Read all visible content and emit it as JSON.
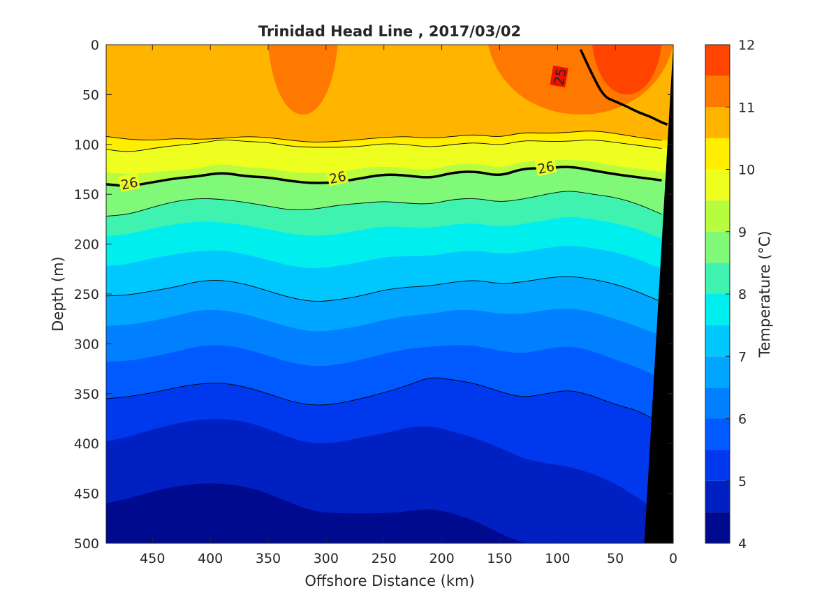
{
  "chart_data": {
    "type": "heatmap",
    "subtype": "filled-contour section",
    "title": "Trinidad Head Line , 2017/03/02",
    "xlabel": "Offshore Distance (km)",
    "ylabel": "Depth (m)",
    "xlim": [
      490,
      0
    ],
    "ylim": [
      0,
      500
    ],
    "x_reversed": true,
    "y_reversed": true,
    "xticks": [
      450,
      400,
      350,
      300,
      250,
      200,
      150,
      100,
      50,
      0
    ],
    "yticks": [
      0,
      50,
      100,
      150,
      200,
      250,
      300,
      350,
      400,
      450,
      500
    ],
    "colorbar": {
      "label": "Temperature (°C)",
      "range": [
        4,
        12
      ],
      "ticks": [
        4,
        5,
        6,
        7,
        8,
        9,
        10,
        11,
        12
      ],
      "levels": [
        4,
        4.5,
        5,
        5.5,
        6,
        6.5,
        7,
        7.5,
        8,
        8.5,
        9,
        9.5,
        10,
        10.5,
        11,
        11.5,
        12
      ],
      "colormap": "jet",
      "colors": [
        "#000a8f",
        "#0020c2",
        "#0038ee",
        "#005aff",
        "#0080ff",
        "#00a6ff",
        "#00c8ff",
        "#00eeee",
        "#40f2b0",
        "#80f878",
        "#b8fc40",
        "#eeff20",
        "#ffee00",
        "#ffb400",
        "#ff7800",
        "#ff4400",
        "#ee0c00",
        "#b40000"
      ]
    },
    "x": [
      490,
      470,
      450,
      430,
      410,
      390,
      370,
      350,
      330,
      310,
      290,
      270,
      250,
      230,
      210,
      190,
      170,
      150,
      130,
      110,
      90,
      70,
      50,
      30,
      10
    ],
    "isotherm_depths": [
      {
        "temp": 10.5,
        "depths": [
          92,
          95,
          96,
          94,
          95,
          94,
          92,
          93,
          96,
          98,
          97,
          95,
          93,
          92,
          94,
          92,
          90,
          93,
          88,
          89,
          88,
          86,
          89,
          93,
          96
        ]
      },
      {
        "temp": 10.0,
        "depths": [
          105,
          108,
          104,
          101,
          99,
          95,
          97,
          98,
          102,
          103,
          103,
          102,
          99,
          100,
          103,
          100,
          98,
          101,
          96,
          97,
          97,
          95,
          98,
          101,
          104
        ]
      },
      {
        "temp": 9.5,
        "depths": [
          128,
          130,
          128,
          126,
          124,
          119,
          123,
          124,
          128,
          129,
          128,
          124,
          122,
          124,
          126,
          120,
          119,
          124,
          117,
          116,
          115,
          117,
          122,
          124,
          128
        ]
      },
      {
        "temp": 9.0,
        "depths": [
          140,
          142,
          138,
          134,
          132,
          128,
          132,
          133,
          137,
          139,
          138,
          134,
          130,
          131,
          134,
          128,
          127,
          132,
          124,
          124,
          122,
          126,
          130,
          133,
          136
        ]
      },
      {
        "temp": 8.5,
        "depths": [
          172,
          170,
          163,
          157,
          154,
          155,
          158,
          162,
          166,
          165,
          161,
          159,
          157,
          159,
          160,
          155,
          154,
          158,
          155,
          150,
          146,
          150,
          153,
          160,
          170
        ]
      },
      {
        "temp": 8.0,
        "depths": [
          192,
          190,
          184,
          180,
          177,
          178,
          181,
          185,
          190,
          192,
          190,
          186,
          182,
          183,
          184,
          180,
          179,
          183,
          180,
          176,
          172,
          175,
          179,
          185,
          195
        ]
      },
      {
        "temp": 7.5,
        "depths": [
          222,
          220,
          214,
          210,
          207,
          206,
          210,
          216,
          222,
          225,
          222,
          218,
          213,
          212,
          212,
          208,
          206,
          210,
          208,
          204,
          201,
          204,
          208,
          215,
          225
        ]
      },
      {
        "temp": 7.0,
        "depths": [
          252,
          251,
          247,
          243,
          237,
          236,
          240,
          247,
          254,
          258,
          256,
          252,
          246,
          243,
          242,
          238,
          236,
          240,
          238,
          234,
          232,
          235,
          240,
          248,
          258
        ]
      },
      {
        "temp": 6.5,
        "depths": [
          282,
          281,
          277,
          272,
          266,
          266,
          270,
          277,
          284,
          288,
          286,
          282,
          276,
          272,
          270,
          266,
          266,
          270,
          270,
          266,
          264,
          268,
          275,
          283,
          292
        ]
      },
      {
        "temp": 6.0,
        "depths": [
          318,
          317,
          313,
          308,
          302,
          301,
          305,
          312,
          319,
          323,
          321,
          316,
          310,
          305,
          303,
          301,
          302,
          307,
          310,
          305,
          302,
          307,
          316,
          324,
          335
        ]
      },
      {
        "temp": 5.5,
        "depths": [
          355,
          353,
          349,
          344,
          340,
          339,
          343,
          350,
          358,
          362,
          360,
          355,
          349,
          342,
          333,
          336,
          340,
          348,
          354,
          350,
          346,
          352,
          361,
          367,
          380
        ]
      },
      {
        "temp": 5.0,
        "depths": [
          398,
          393,
          386,
          380,
          376,
          375,
          378,
          385,
          395,
          400,
          399,
          394,
          390,
          384,
          382,
          388,
          395,
          404,
          415,
          420,
          423,
          430,
          440,
          455,
          470
        ]
      },
      {
        "temp": 4.5,
        "depths": [
          460,
          455,
          448,
          443,
          440,
          440,
          443,
          450,
          460,
          468,
          470,
          470,
          470,
          468,
          465,
          470,
          478,
          490,
          500,
          500,
          500,
          500,
          500,
          500,
          500
        ]
      }
    ],
    "surface_warm_patches": [
      {
        "temp": 11.0,
        "x_range": [
          160,
          0
        ],
        "max_depth": 70
      },
      {
        "temp": 11.0,
        "x_range": [
          350,
          290
        ],
        "max_depth": 70
      },
      {
        "temp": 11.5,
        "x_range": [
          70,
          10
        ],
        "max_depth": 50
      }
    ],
    "contour_lines": [
      {
        "label": "25",
        "depths_from_x": [
          80,
          70,
          60,
          50,
          40,
          30,
          20,
          10,
          5
        ],
        "depths": [
          5,
          30,
          52,
          57,
          62,
          68,
          72,
          78,
          80
        ],
        "bold": true
      },
      {
        "label": "26",
        "bold": true,
        "follows_isotherm": 9.0
      }
    ],
    "contour_labels": [
      "26",
      "26",
      "26",
      "25"
    ],
    "bathymetry": {
      "color": "#000000",
      "surface_x": 0,
      "bottom_x": 25
    }
  }
}
